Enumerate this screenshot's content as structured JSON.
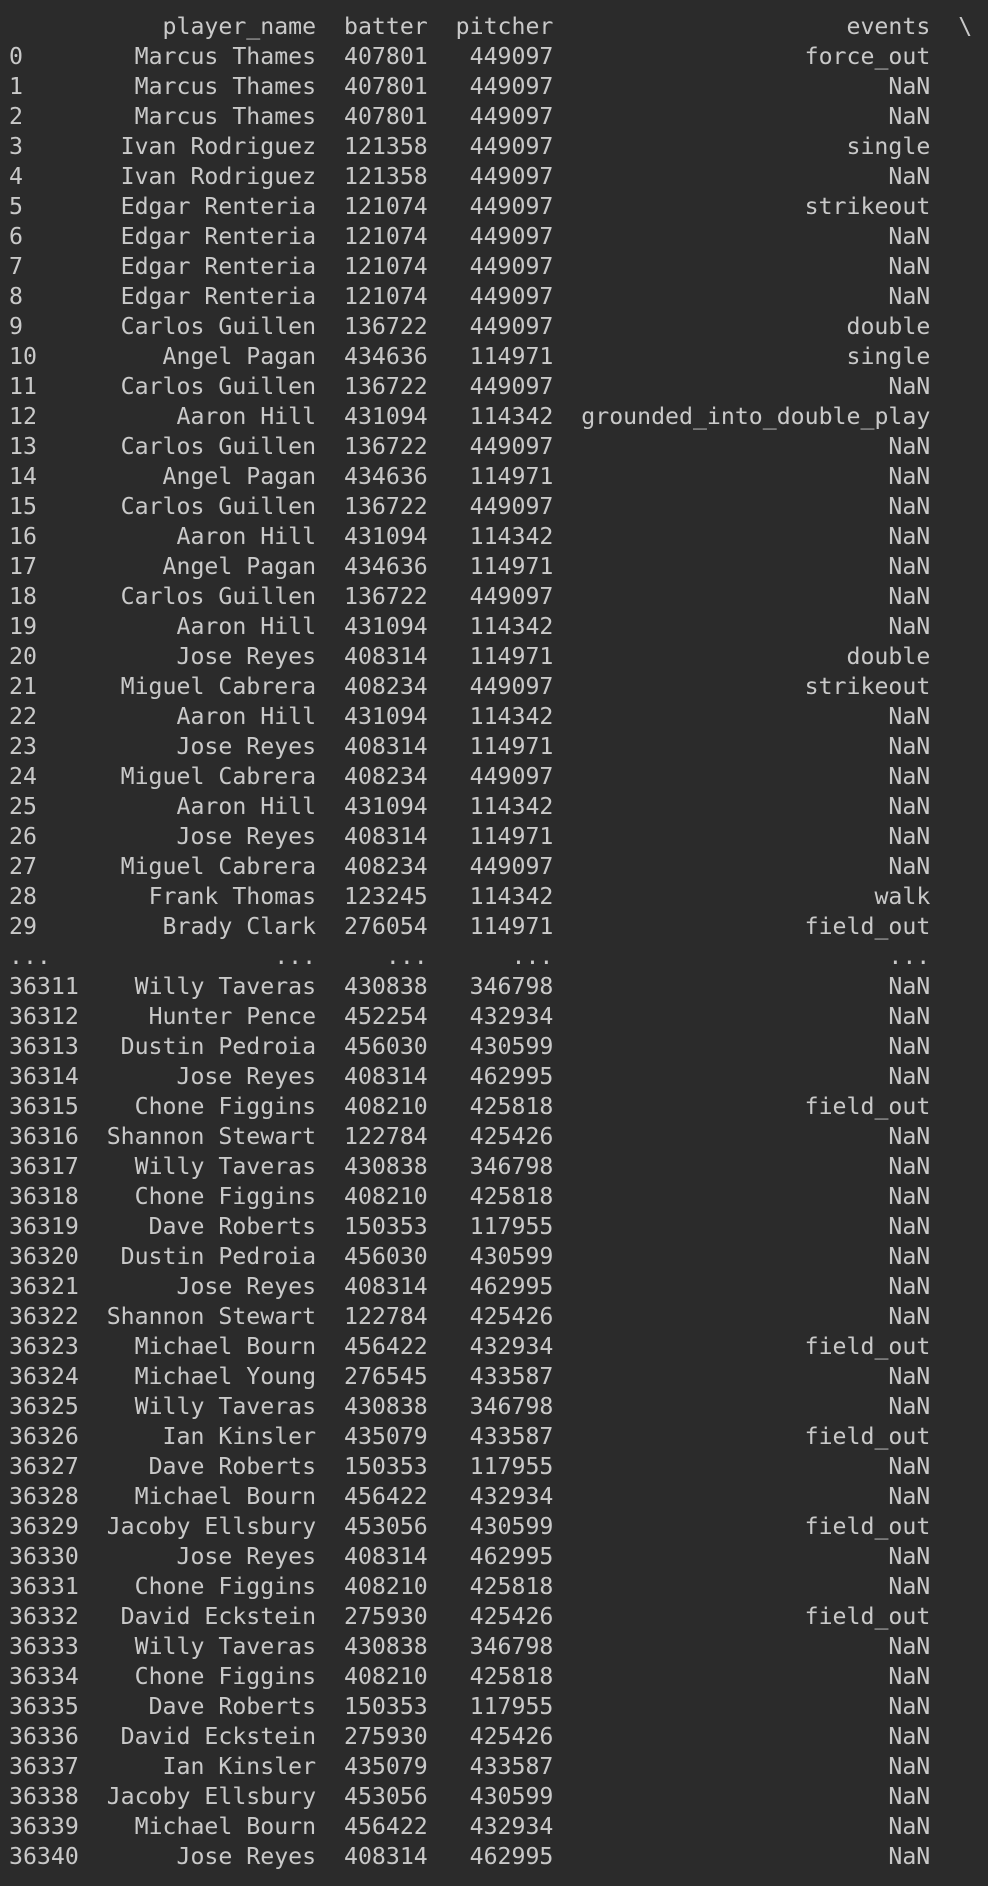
{
  "terminal": {
    "columns": [
      "player_name",
      "batter",
      "pitcher",
      "events"
    ],
    "continuation": "\\",
    "ellipsis_row": [
      "...",
      "...",
      "...",
      "...",
      "..."
    ],
    "rows_head": [
      [
        "0",
        "Marcus Thames",
        "407801",
        "449097",
        "force_out"
      ],
      [
        "1",
        "Marcus Thames",
        "407801",
        "449097",
        "NaN"
      ],
      [
        "2",
        "Marcus Thames",
        "407801",
        "449097",
        "NaN"
      ],
      [
        "3",
        "Ivan Rodriguez",
        "121358",
        "449097",
        "single"
      ],
      [
        "4",
        "Ivan Rodriguez",
        "121358",
        "449097",
        "NaN"
      ],
      [
        "5",
        "Edgar Renteria",
        "121074",
        "449097",
        "strikeout"
      ],
      [
        "6",
        "Edgar Renteria",
        "121074",
        "449097",
        "NaN"
      ],
      [
        "7",
        "Edgar Renteria",
        "121074",
        "449097",
        "NaN"
      ],
      [
        "8",
        "Edgar Renteria",
        "121074",
        "449097",
        "NaN"
      ],
      [
        "9",
        "Carlos Guillen",
        "136722",
        "449097",
        "double"
      ],
      [
        "10",
        "Angel Pagan",
        "434636",
        "114971",
        "single"
      ],
      [
        "11",
        "Carlos Guillen",
        "136722",
        "449097",
        "NaN"
      ],
      [
        "12",
        "Aaron Hill",
        "431094",
        "114342",
        "grounded_into_double_play"
      ],
      [
        "13",
        "Carlos Guillen",
        "136722",
        "449097",
        "NaN"
      ],
      [
        "14",
        "Angel Pagan",
        "434636",
        "114971",
        "NaN"
      ],
      [
        "15",
        "Carlos Guillen",
        "136722",
        "449097",
        "NaN"
      ],
      [
        "16",
        "Aaron Hill",
        "431094",
        "114342",
        "NaN"
      ],
      [
        "17",
        "Angel Pagan",
        "434636",
        "114971",
        "NaN"
      ],
      [
        "18",
        "Carlos Guillen",
        "136722",
        "449097",
        "NaN"
      ],
      [
        "19",
        "Aaron Hill",
        "431094",
        "114342",
        "NaN"
      ],
      [
        "20",
        "Jose Reyes",
        "408314",
        "114971",
        "double"
      ],
      [
        "21",
        "Miguel Cabrera",
        "408234",
        "449097",
        "strikeout"
      ],
      [
        "22",
        "Aaron Hill",
        "431094",
        "114342",
        "NaN"
      ],
      [
        "23",
        "Jose Reyes",
        "408314",
        "114971",
        "NaN"
      ],
      [
        "24",
        "Miguel Cabrera",
        "408234",
        "449097",
        "NaN"
      ],
      [
        "25",
        "Aaron Hill",
        "431094",
        "114342",
        "NaN"
      ],
      [
        "26",
        "Jose Reyes",
        "408314",
        "114971",
        "NaN"
      ],
      [
        "27",
        "Miguel Cabrera",
        "408234",
        "449097",
        "NaN"
      ],
      [
        "28",
        "Frank Thomas",
        "123245",
        "114342",
        "walk"
      ],
      [
        "29",
        "Brady Clark",
        "276054",
        "114971",
        "field_out"
      ]
    ],
    "rows_tail": [
      [
        "36311",
        "Willy Taveras",
        "430838",
        "346798",
        "NaN"
      ],
      [
        "36312",
        "Hunter Pence",
        "452254",
        "432934",
        "NaN"
      ],
      [
        "36313",
        "Dustin Pedroia",
        "456030",
        "430599",
        "NaN"
      ],
      [
        "36314",
        "Jose Reyes",
        "408314",
        "462995",
        "NaN"
      ],
      [
        "36315",
        "Chone Figgins",
        "408210",
        "425818",
        "field_out"
      ],
      [
        "36316",
        "Shannon Stewart",
        "122784",
        "425426",
        "NaN"
      ],
      [
        "36317",
        "Willy Taveras",
        "430838",
        "346798",
        "NaN"
      ],
      [
        "36318",
        "Chone Figgins",
        "408210",
        "425818",
        "NaN"
      ],
      [
        "36319",
        "Dave Roberts",
        "150353",
        "117955",
        "NaN"
      ],
      [
        "36320",
        "Dustin Pedroia",
        "456030",
        "430599",
        "NaN"
      ],
      [
        "36321",
        "Jose Reyes",
        "408314",
        "462995",
        "NaN"
      ],
      [
        "36322",
        "Shannon Stewart",
        "122784",
        "425426",
        "NaN"
      ],
      [
        "36323",
        "Michael Bourn",
        "456422",
        "432934",
        "field_out"
      ],
      [
        "36324",
        "Michael Young",
        "276545",
        "433587",
        "NaN"
      ],
      [
        "36325",
        "Willy Taveras",
        "430838",
        "346798",
        "NaN"
      ],
      [
        "36326",
        "Ian Kinsler",
        "435079",
        "433587",
        "field_out"
      ],
      [
        "36327",
        "Dave Roberts",
        "150353",
        "117955",
        "NaN"
      ],
      [
        "36328",
        "Michael Bourn",
        "456422",
        "432934",
        "NaN"
      ],
      [
        "36329",
        "Jacoby Ellsbury",
        "453056",
        "430599",
        "field_out"
      ],
      [
        "36330",
        "Jose Reyes",
        "408314",
        "462995",
        "NaN"
      ],
      [
        "36331",
        "Chone Figgins",
        "408210",
        "425818",
        "NaN"
      ],
      [
        "36332",
        "David Eckstein",
        "275930",
        "425426",
        "field_out"
      ],
      [
        "36333",
        "Willy Taveras",
        "430838",
        "346798",
        "NaN"
      ],
      [
        "36334",
        "Chone Figgins",
        "408210",
        "425818",
        "NaN"
      ],
      [
        "36335",
        "Dave Roberts",
        "150353",
        "117955",
        "NaN"
      ],
      [
        "36336",
        "David Eckstein",
        "275930",
        "425426",
        "NaN"
      ],
      [
        "36337",
        "Ian Kinsler",
        "435079",
        "433587",
        "NaN"
      ],
      [
        "36338",
        "Jacoby Ellsbury",
        "453056",
        "430599",
        "NaN"
      ],
      [
        "36339",
        "Michael Bourn",
        "456422",
        "432934",
        "NaN"
      ],
      [
        "36340",
        "Jose Reyes",
        "408314",
        "462995",
        "NaN"
      ]
    ]
  }
}
